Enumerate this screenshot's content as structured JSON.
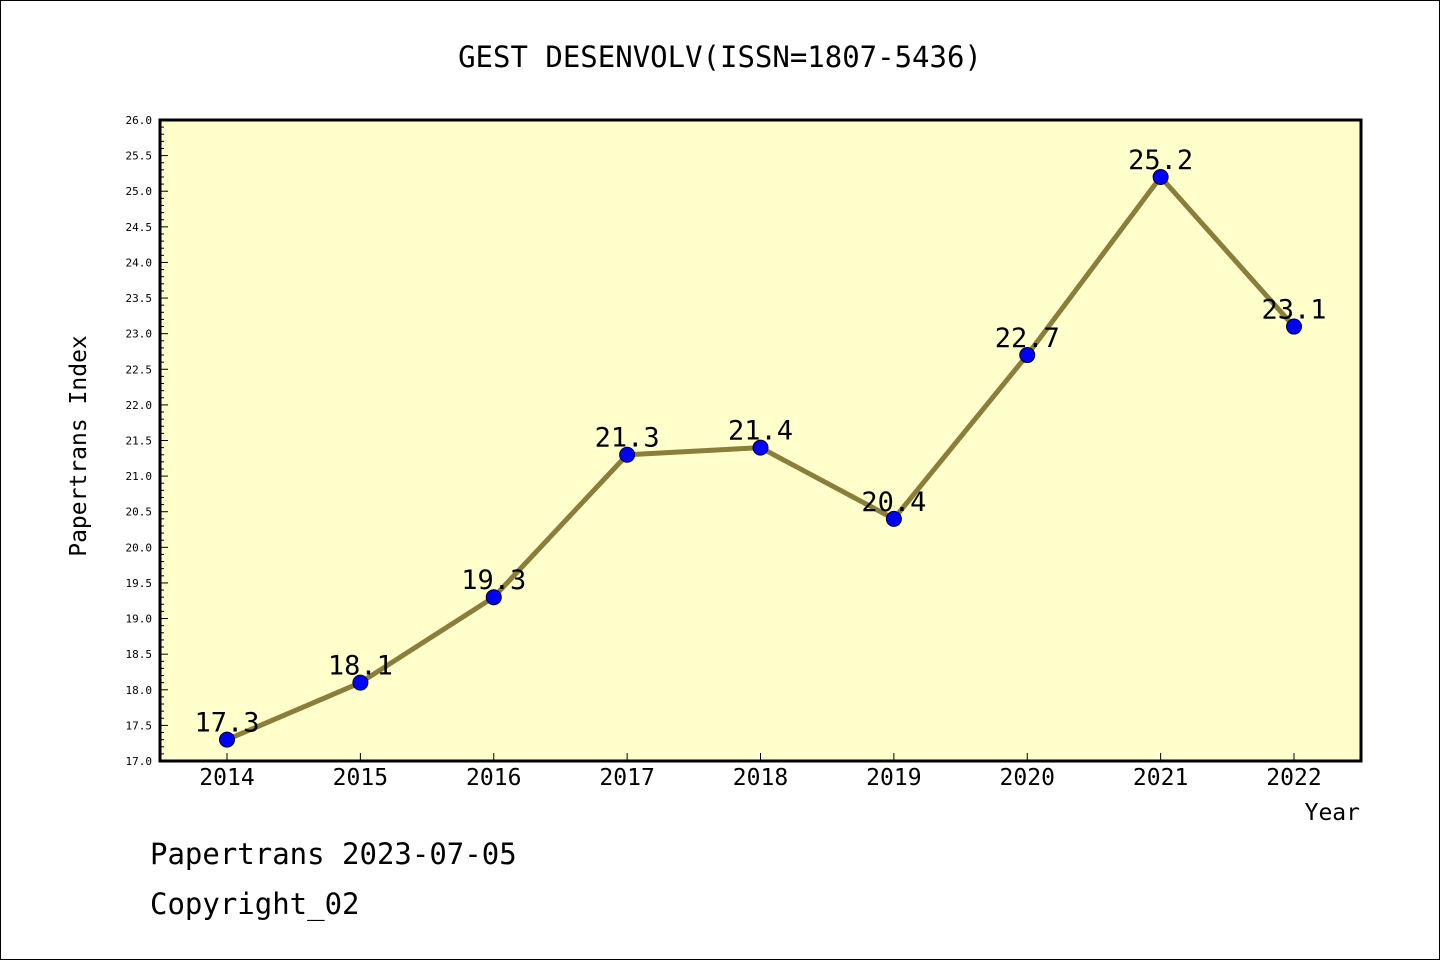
{
  "chart_data": {
    "type": "line",
    "title": "GEST DESENVOLV(ISSN=1807-5436)",
    "xlabel": "Year",
    "ylabel": "Papertrans Index",
    "categories": [
      "2014",
      "2015",
      "2016",
      "2017",
      "2018",
      "2019",
      "2020",
      "2021",
      "2022"
    ],
    "series": [
      {
        "values": [
          17.3,
          18.1,
          19.3,
          21.3,
          21.4,
          20.4,
          22.7,
          25.2,
          23.1
        ],
        "data_labels": [
          "17.3",
          "18.1",
          "19.3",
          "21.3",
          "21.4",
          "20.4",
          "22.7",
          "25.2",
          "23.1"
        ]
      }
    ],
    "ylim": [
      17.0,
      26.0
    ],
    "yticks": [
      "17.0",
      "17.5",
      "18.0",
      "18.5",
      "19.0",
      "19.5",
      "20.0",
      "20.5",
      "21.0",
      "21.5",
      "22.0",
      "22.5",
      "23.0",
      "23.5",
      "24.0",
      "24.5",
      "25.0",
      "25.5",
      "26.0"
    ],
    "grid": false,
    "legend": "none",
    "colors": {
      "plot_background": "#ffffcc",
      "line": "#8b7d3a",
      "marker": "#0000ff",
      "axis": "#000000"
    }
  },
  "footer": {
    "line1": "Papertrans 2023-07-05",
    "line2": "Copyright_02"
  }
}
